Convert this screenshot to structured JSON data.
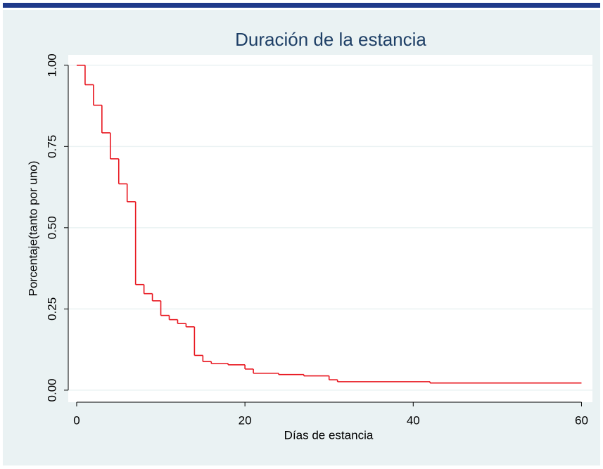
{
  "chart_data": {
    "type": "step",
    "title": "Duración de la estancia",
    "x_label": "Días de estancia",
    "y_label": "Porcentaje(tanto por uno)",
    "color": "#e8141d",
    "grid": true,
    "x": [
      0,
      1,
      2,
      3,
      4,
      5,
      6,
      7,
      8,
      9,
      10,
      11,
      12,
      13,
      14,
      15,
      16,
      18,
      20,
      21,
      24,
      27,
      30,
      31,
      42,
      60
    ],
    "values": [
      1.0,
      0.94,
      0.877,
      0.792,
      0.712,
      0.635,
      0.58,
      0.325,
      0.297,
      0.275,
      0.23,
      0.217,
      0.205,
      0.195,
      0.107,
      0.088,
      0.082,
      0.078,
      0.065,
      0.052,
      0.048,
      0.044,
      0.032,
      0.026,
      0.022,
      0.022
    ],
    "xlim": [
      -1,
      61.3
    ],
    "ylim": [
      -0.037,
      1.032
    ],
    "xticks": [
      0,
      20,
      40,
      60
    ],
    "yticks": [
      {
        "value": 0,
        "label": "0.00"
      },
      {
        "value": 0.25,
        "label": "0.25"
      },
      {
        "value": 0.5,
        "label": "0.50"
      },
      {
        "value": 0.75,
        "label": "0.75"
      },
      {
        "value": 1,
        "label": "1.00"
      }
    ]
  }
}
